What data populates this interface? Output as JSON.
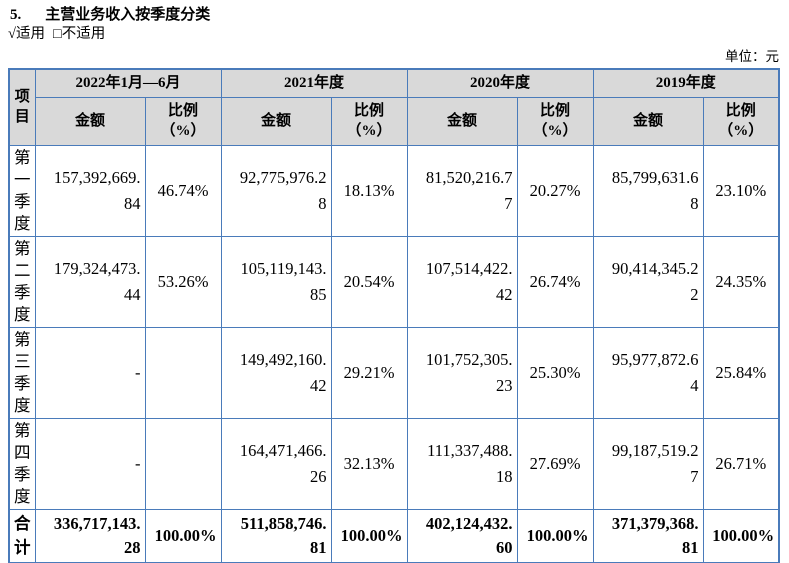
{
  "doc": {
    "section_number": "5.",
    "section_title": "主营业务收入按季度分类",
    "applicable": "√适用",
    "not_applicable": "□不适用",
    "unit_label": "单位：元"
  },
  "table": {
    "item_header": "项目",
    "col_groups": [
      {
        "period": "2022年1月—6月",
        "amount_header": "金额",
        "ratio_header": "比例（%）"
      },
      {
        "period": "2021年度",
        "amount_header": "金额",
        "ratio_header": "比例（%）"
      },
      {
        "period": "2020年度",
        "amount_header": "金额",
        "ratio_header": "比例（%）"
      },
      {
        "period": "2019年度",
        "amount_header": "金额",
        "ratio_header": "比例（%）"
      }
    ],
    "rows": [
      {
        "item": "第一季度",
        "cells": [
          "157,392,669.84",
          "46.74%",
          "92,775,976.28",
          "18.13%",
          "81,520,216.77",
          "20.27%",
          "85,799,631.68",
          "23.10%"
        ]
      },
      {
        "item": "第二季度",
        "cells": [
          "179,324,473.44",
          "53.26%",
          "105,119,143.85",
          "20.54%",
          "107,514,422.42",
          "26.74%",
          "90,414,345.22",
          "24.35%"
        ]
      },
      {
        "item": "第三季度",
        "cells": [
          "-",
          "",
          "149,492,160.42",
          "29.21%",
          "101,752,305.23",
          "25.30%",
          "95,977,872.64",
          "25.84%"
        ]
      },
      {
        "item": "第四季度",
        "cells": [
          "-",
          "",
          "164,471,466.26",
          "32.13%",
          "111,337,488.18",
          "27.69%",
          "99,187,519.27",
          "26.71%"
        ]
      }
    ],
    "total_row": {
      "item": "合计",
      "cells": [
        "336,717,143.28",
        "100.00%",
        "511,858,746.81",
        "100.00%",
        "402,124,432.60",
        "100.00%",
        "371,379,368.81",
        "100.00%"
      ]
    }
  },
  "colors": {
    "border": "#4a7bba",
    "header_bg": "#d9d9d9",
    "text": "#000000"
  }
}
